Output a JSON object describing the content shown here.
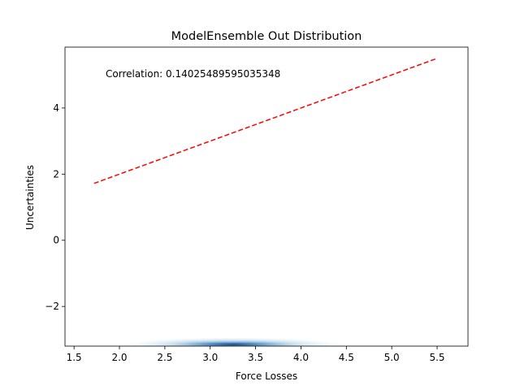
{
  "chart_data": {
    "type": "scatter",
    "title": "ModelEnsemble Out Distribution",
    "xlabel": "Force Losses",
    "ylabel": "Uncertainties",
    "xlim": [
      1.4,
      5.84
    ],
    "ylim": [
      -3.2,
      5.84
    ],
    "xticks": [
      1.5,
      2.0,
      2.5,
      3.0,
      3.5,
      4.0,
      4.5,
      5.0,
      5.5
    ],
    "xtick_labels": [
      "1.5",
      "2.0",
      "2.5",
      "3.0",
      "3.5",
      "4.0",
      "4.5",
      "5.0",
      "5.5"
    ],
    "yticks": [
      -2,
      0,
      2,
      4
    ],
    "ytick_labels": [
      "−2",
      "0",
      "2",
      "4"
    ],
    "annotation": "Correlation: 0.14025489595035348",
    "reference_line": {
      "x": [
        1.72,
        5.49
      ],
      "y": [
        1.72,
        5.49
      ],
      "color": "#ff0000",
      "style": "dashed"
    },
    "density": {
      "type": "kde",
      "color": "#08519c",
      "x_center": 3.25,
      "y_center": -3.15,
      "x_range": [
        2.2,
        4.6
      ]
    },
    "grid": false,
    "legend": "none"
  }
}
